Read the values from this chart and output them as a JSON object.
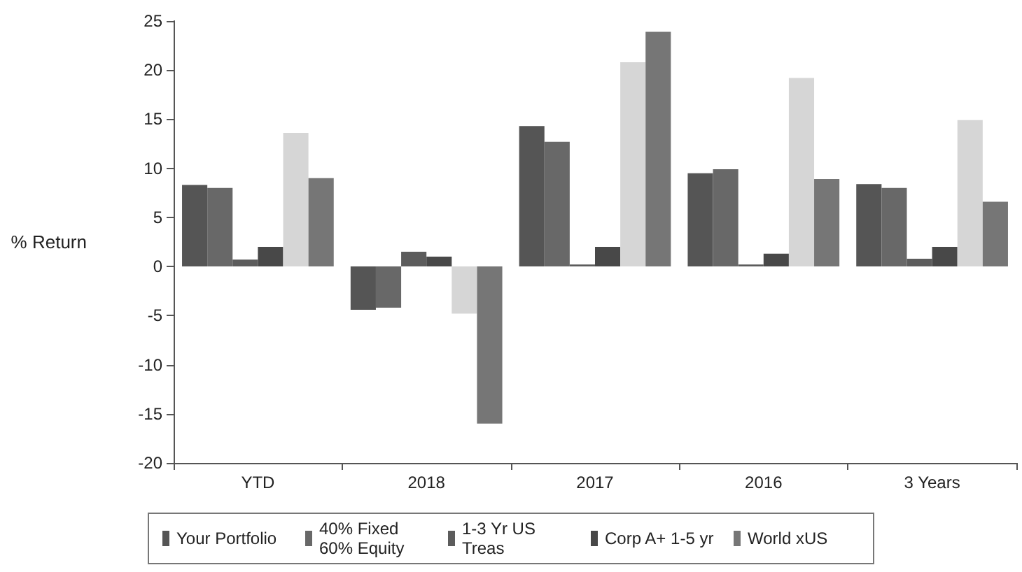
{
  "chart_data": {
    "type": "bar",
    "ylabel": "% Return",
    "categories": [
      "YTD",
      "2018",
      "2017",
      "2016",
      "3 Years"
    ],
    "series": [
      {
        "name": "Your Portfolio",
        "color": "#555555",
        "values": [
          8.3,
          -4.4,
          14.3,
          9.5,
          8.4
        ]
      },
      {
        "name": "40% Fixed 60% Equity",
        "color": "#686868",
        "values": [
          8.0,
          -4.2,
          12.7,
          9.9,
          8.0
        ]
      },
      {
        "name": "1-3 Yr US Treas",
        "color": "#5c5c5c",
        "values": [
          0.7,
          1.5,
          0.2,
          0.2,
          0.8
        ]
      },
      {
        "name": "Corp A+ 1-5 yr",
        "color": "#484848",
        "values": [
          2.0,
          1.0,
          2.0,
          1.3,
          2.0
        ]
      },
      {
        "color": "#d6d6d6",
        "values": [
          13.6,
          -4.8,
          20.8,
          19.2,
          14.9
        ]
      },
      {
        "name": "World xUS",
        "color": "#767676",
        "values": [
          9.0,
          -16.0,
          23.9,
          8.9,
          6.6
        ]
      }
    ],
    "ylim": [
      -20,
      25
    ],
    "yticks": [
      -20,
      -15,
      -10,
      -5,
      0,
      5,
      10,
      15,
      20,
      25
    ],
    "grid": false,
    "legend": "bottom"
  }
}
